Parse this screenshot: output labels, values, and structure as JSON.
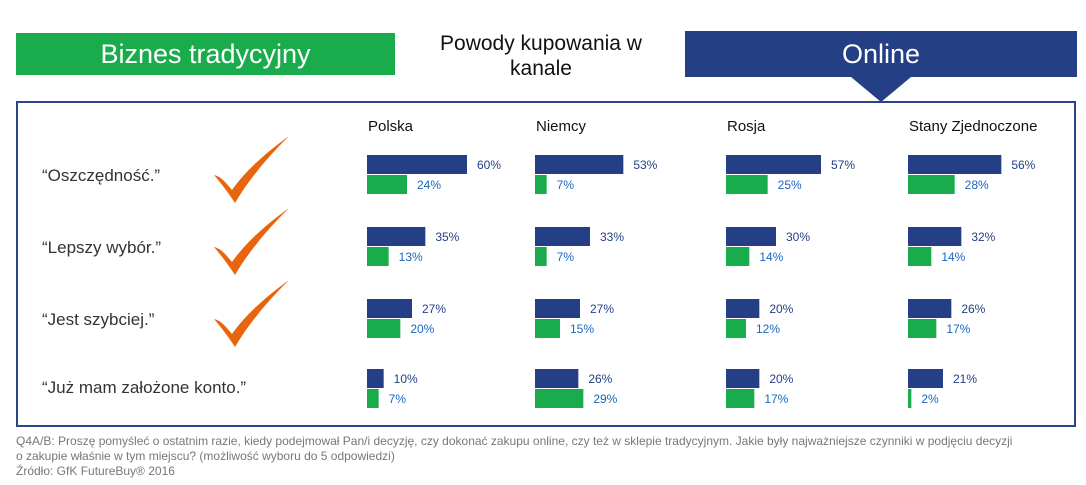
{
  "header": {
    "left_label": "Biznes tradycyjny",
    "center_title_line1": "Powody kupowania w",
    "center_title_line2": "kanale",
    "right_label": "Online"
  },
  "colors": {
    "online": "#243f86",
    "traditional": "#1aac4c",
    "check": "#e8650f"
  },
  "chart_data": {
    "type": "bar",
    "orientation": "horizontal",
    "groups": [
      "Polska",
      "Niemcy",
      "Rosja",
      "Stany Zjednoczone"
    ],
    "categories": [
      "“Oszczędność.”",
      "“Lepszy wybór.”",
      "“Jest szybciej.”",
      "“Już mam założone konto.”"
    ],
    "checked_categories": [
      true,
      true,
      true,
      false
    ],
    "series": [
      {
        "key": "online",
        "values": [
          [
            60,
            53,
            57,
            56
          ],
          [
            35,
            33,
            30,
            32
          ],
          [
            27,
            27,
            20,
            26
          ],
          [
            10,
            26,
            20,
            21
          ]
        ]
      },
      {
        "key": "traditional",
        "values": [
          [
            24,
            7,
            25,
            28
          ],
          [
            13,
            7,
            14,
            14
          ],
          [
            20,
            15,
            12,
            17
          ],
          [
            7,
            29,
            17,
            2
          ]
        ]
      }
    ],
    "value_suffix": "%",
    "xlim": [
      0,
      60
    ],
    "grid": false
  },
  "footnote": {
    "line1": "Q4A/B: Proszę pomyśleć o ostatnim razie, kiedy podejmował Pan/i decyzję, czy dokonać zakupu online, czy też w sklepie tradycyjnym. Jakie były najważniejsze czynniki w podjęciu decyzji",
    "line2": "o zakupie właśnie w tym miejscu? (możliwość wyboru do 5 odpowiedzi)",
    "source": "Źródło: GfK FutureBuy® 2016"
  }
}
